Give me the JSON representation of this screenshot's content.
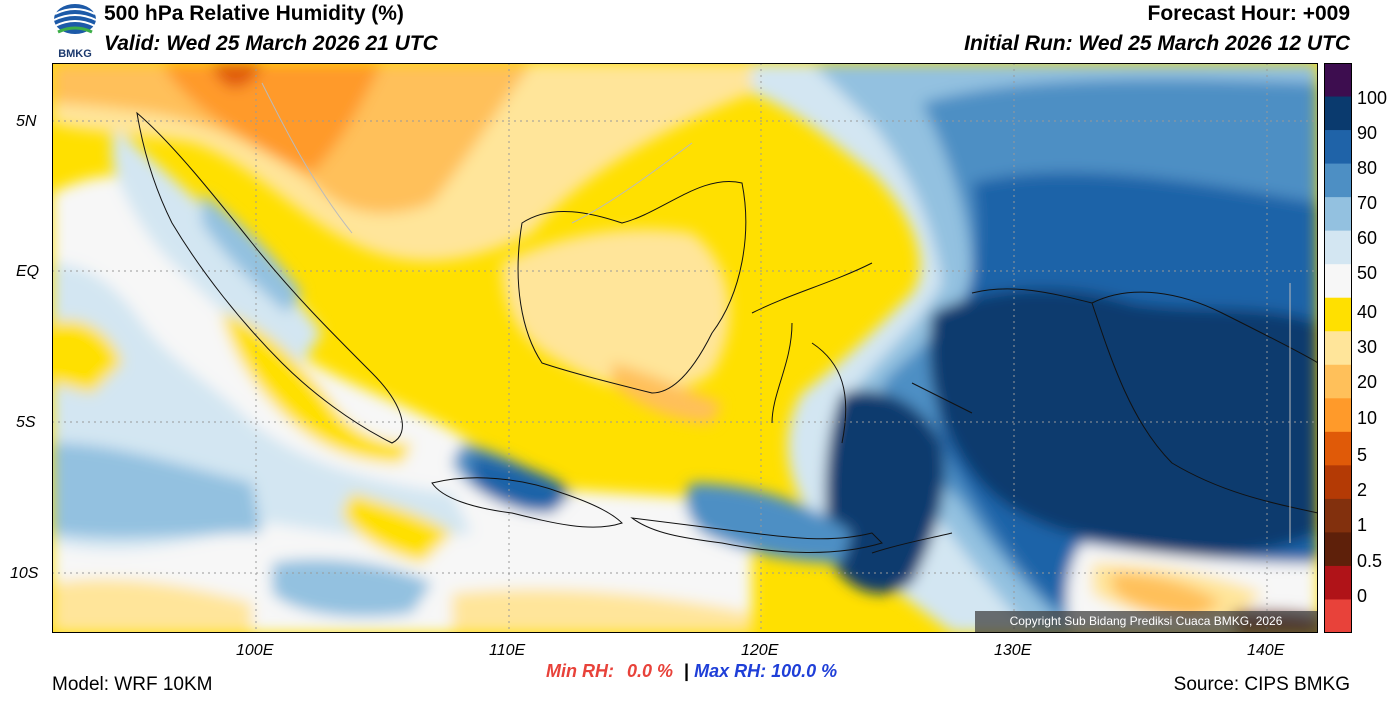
{
  "header": {
    "title": "500 hPa Relative Humidity (%)",
    "valid": "Valid: Wed 25 March 2026 21 UTC",
    "forecast_hour": "Forecast Hour: +009",
    "initial_run": "Initial Run: Wed 25 March 2026 12 UTC",
    "logo_text": "BMKG"
  },
  "axes": {
    "lat_labels": [
      "5N",
      "EQ",
      "5S",
      "10S"
    ],
    "lon_labels": [
      "100E",
      "110E",
      "120E",
      "130E",
      "140E"
    ]
  },
  "colorbar": {
    "labels": [
      "100",
      "90",
      "80",
      "70",
      "60",
      "50",
      "40",
      "30",
      "20",
      "10",
      "5",
      "2",
      "1",
      "0.5",
      "0"
    ],
    "colors": [
      "#3d0d4f",
      "#0a3a6e",
      "#1f63a8",
      "#4d8fc4",
      "#93c1e0",
      "#d3e6f2",
      "#f7f7f7",
      "#ffe000",
      "#ffe59a",
      "#ffc05a",
      "#ff9a2a",
      "#e05a08",
      "#b43a05",
      "#82300d",
      "#5e200a",
      "#b01318",
      "#e8423a"
    ]
  },
  "footer": {
    "model": "Model: WRF 10KM",
    "min_rh_label": "Min RH:",
    "min_rh_value": "0.0 %",
    "separator": "|",
    "max_rh_label": "Max RH:",
    "max_rh_value": "100.0 %",
    "source": "Source: CIPS BMKG",
    "copyright": "Copyright Sub Bidang Prediksi Cuaca BMKG, 2026"
  }
}
